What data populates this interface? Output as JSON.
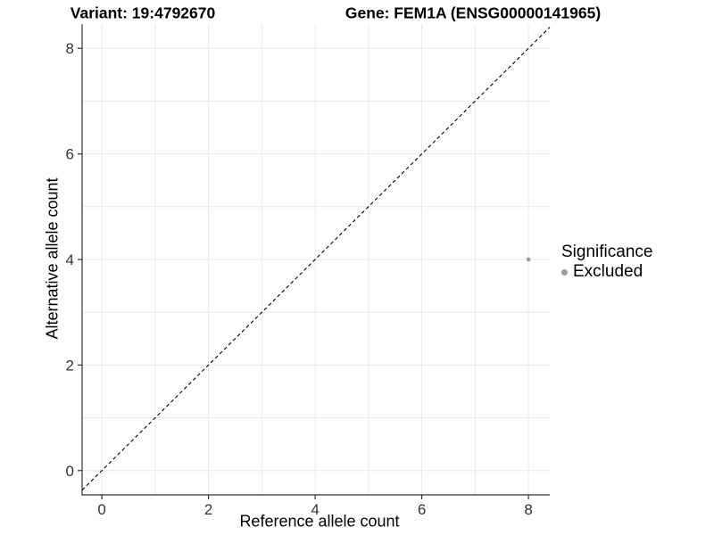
{
  "chart_data": {
    "type": "scatter",
    "title": {
      "left": "Variant: 19:4792670",
      "right": "Gene: FEM1A (ENSG00000141965)"
    },
    "xlabel": "Reference allele count",
    "ylabel": "Alternative allele count",
    "xlim": [
      -0.37,
      8.4
    ],
    "ylim": [
      -0.46,
      8.46
    ],
    "x_ticks": [
      0,
      2,
      4,
      6,
      8
    ],
    "y_ticks": [
      0,
      2,
      4,
      6,
      8
    ],
    "x_grid": [
      0,
      1,
      2,
      3,
      4,
      5,
      6,
      7,
      8
    ],
    "y_grid": [
      0,
      1,
      2,
      3,
      4,
      5,
      6,
      7,
      8
    ],
    "grid_on": true,
    "grid_color": "#e8e8e8",
    "axis_color": "#333333",
    "identity_line": {
      "slope": 1,
      "intercept": 0,
      "style": "dashed",
      "color": "#000000"
    },
    "points": [
      {
        "x": 8,
        "y": 4,
        "significance": "Excluded",
        "color": "#999999"
      }
    ],
    "legend": {
      "title": "Significance",
      "position": "right",
      "items": [
        {
          "label": "Excluded",
          "color": "#999999",
          "marker": "circle-icon"
        }
      ]
    }
  }
}
